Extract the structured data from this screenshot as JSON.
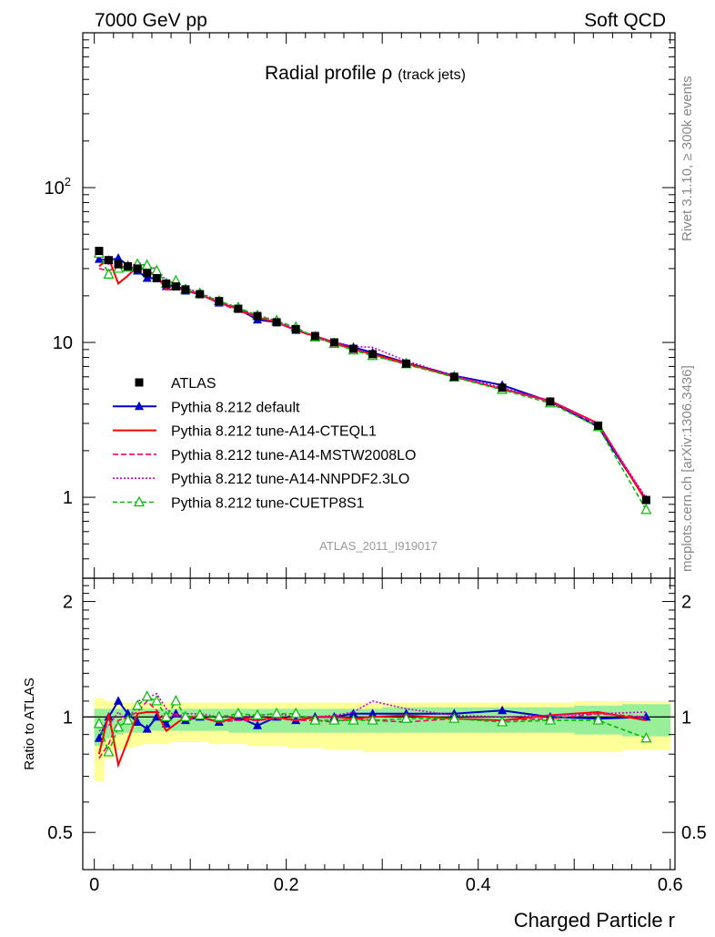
{
  "header": {
    "left": "7000 GeV pp",
    "right": "Soft QCD"
  },
  "side_text": {
    "rivet": "Rivet 3.1.10, ≥ 300k events",
    "mcplots": "mcplots.cern.ch [arXiv:1306.3436]"
  },
  "chart_data": {
    "type": "line",
    "title": "Radial profile",
    "title_symbol": "ρ",
    "title_suffix": "(track jets)",
    "watermark": "ATLAS_2011_I919017",
    "xlabel": "Charged Particle r",
    "ratio_ylabel": "Ratio to ATLAS",
    "xlim": [
      -0.012,
      0.605
    ],
    "ylim_main": [
      0.3,
      1000
    ],
    "yscale_main": "log",
    "ylim_ratio": [
      0.4,
      2.3
    ],
    "yscale_ratio": "log",
    "x_ticks": [
      {
        "v": 0,
        "label": "0"
      },
      {
        "v": 0.2,
        "label": "0.2"
      },
      {
        "v": 0.4,
        "label": "0.4"
      },
      {
        "v": 0.6,
        "label": "0.6"
      }
    ],
    "y_ticks_main": [
      {
        "v": 1,
        "label": "1"
      },
      {
        "v": 10,
        "label": "10"
      },
      {
        "v": 100,
        "label": "10²"
      }
    ],
    "y_ticks_ratio": [
      {
        "v": 0.5,
        "label": "0.5"
      },
      {
        "v": 1,
        "label": "1"
      },
      {
        "v": 2,
        "label": "2"
      }
    ],
    "legend_position": "lower-left",
    "x": [
      0.005,
      0.015,
      0.025,
      0.035,
      0.045,
      0.055,
      0.065,
      0.075,
      0.085,
      0.095,
      0.11,
      0.13,
      0.15,
      0.17,
      0.19,
      0.21,
      0.23,
      0.25,
      0.27,
      0.29,
      0.325,
      0.375,
      0.425,
      0.475,
      0.525,
      0.575
    ],
    "bins": [
      [
        0.0,
        0.01
      ],
      [
        0.01,
        0.02
      ],
      [
        0.02,
        0.03
      ],
      [
        0.03,
        0.04
      ],
      [
        0.04,
        0.05
      ],
      [
        0.05,
        0.06
      ],
      [
        0.06,
        0.07
      ],
      [
        0.07,
        0.08
      ],
      [
        0.08,
        0.09
      ],
      [
        0.09,
        0.1
      ],
      [
        0.1,
        0.12
      ],
      [
        0.12,
        0.14
      ],
      [
        0.14,
        0.16
      ],
      [
        0.16,
        0.18
      ],
      [
        0.18,
        0.2
      ],
      [
        0.2,
        0.22
      ],
      [
        0.22,
        0.24
      ],
      [
        0.24,
        0.26
      ],
      [
        0.26,
        0.28
      ],
      [
        0.28,
        0.3
      ],
      [
        0.3,
        0.35
      ],
      [
        0.35,
        0.4
      ],
      [
        0.4,
        0.45
      ],
      [
        0.45,
        0.5
      ],
      [
        0.5,
        0.55
      ],
      [
        0.55,
        0.6
      ]
    ],
    "ratio_bands": {
      "yellow": [
        [
          0.68,
          1.12
        ],
        [
          0.78,
          1.1
        ],
        [
          0.82,
          1.09
        ],
        [
          0.83,
          1.09
        ],
        [
          0.84,
          1.09
        ],
        [
          0.85,
          1.09
        ],
        [
          0.85,
          1.09
        ],
        [
          0.85,
          1.09
        ],
        [
          0.86,
          1.09
        ],
        [
          0.86,
          1.09
        ],
        [
          0.86,
          1.09
        ],
        [
          0.85,
          1.09
        ],
        [
          0.85,
          1.09
        ],
        [
          0.84,
          1.09
        ],
        [
          0.84,
          1.09
        ],
        [
          0.83,
          1.09
        ],
        [
          0.83,
          1.09
        ],
        [
          0.82,
          1.09
        ],
        [
          0.82,
          1.09
        ],
        [
          0.81,
          1.09
        ],
        [
          0.81,
          1.09
        ],
        [
          0.81,
          1.09
        ],
        [
          0.81,
          1.09
        ],
        [
          0.81,
          1.09
        ],
        [
          0.81,
          1.1
        ],
        [
          0.82,
          1.1
        ]
      ],
      "green": [
        [
          0.84,
          1.05
        ],
        [
          0.88,
          1.05
        ],
        [
          0.9,
          1.05
        ],
        [
          0.91,
          1.05
        ],
        [
          0.91,
          1.05
        ],
        [
          0.92,
          1.05
        ],
        [
          0.92,
          1.05
        ],
        [
          0.92,
          1.05
        ],
        [
          0.92,
          1.05
        ],
        [
          0.92,
          1.05
        ],
        [
          0.92,
          1.05
        ],
        [
          0.92,
          1.05
        ],
        [
          0.91,
          1.05
        ],
        [
          0.91,
          1.05
        ],
        [
          0.91,
          1.05
        ],
        [
          0.91,
          1.05
        ],
        [
          0.91,
          1.05
        ],
        [
          0.91,
          1.05
        ],
        [
          0.91,
          1.05
        ],
        [
          0.91,
          1.05
        ],
        [
          0.91,
          1.06
        ],
        [
          0.91,
          1.06
        ],
        [
          0.91,
          1.06
        ],
        [
          0.91,
          1.06
        ],
        [
          0.9,
          1.07
        ],
        [
          0.89,
          1.08
        ]
      ]
    },
    "series": [
      {
        "name": "ATLAS",
        "color": "#000000",
        "dash": "none",
        "marker": "square",
        "values": [
          39,
          34,
          32,
          31,
          30,
          28,
          26,
          24,
          23,
          22,
          20.5,
          18.5,
          16.5,
          14.8,
          13.5,
          12.2,
          11.0,
          10.0,
          9.1,
          8.4,
          7.3,
          6.0,
          5.1,
          4.15,
          2.9,
          0.96
        ],
        "ratio": [
          1,
          1,
          1,
          1,
          1,
          1,
          1,
          1,
          1,
          1,
          1,
          1,
          1,
          1,
          1,
          1,
          1,
          1,
          1,
          1,
          1,
          1,
          1,
          1,
          1,
          1
        ]
      },
      {
        "name": "Pythia 8.212 default",
        "color": "#0000cc",
        "dash": "none",
        "marker": "triangle",
        "values": [
          34.5,
          34.0,
          35.0,
          31.5,
          29.0,
          26.0,
          26.0,
          23.0,
          23.5,
          21.5,
          20.5,
          18.0,
          16.5,
          14.0,
          13.5,
          12.0,
          11.0,
          10.0,
          9.3,
          8.6,
          7.4,
          6.1,
          5.3,
          4.15,
          2.85,
          0.96
        ],
        "ratio": [
          0.88,
          1.0,
          1.1,
          1.02,
          0.97,
          0.93,
          1.0,
          0.96,
          1.02,
          0.98,
          1.0,
          0.97,
          1.0,
          0.95,
          1.0,
          0.98,
          1.0,
          1.0,
          1.02,
          1.02,
          1.02,
          1.02,
          1.04,
          1.0,
          0.99,
          1.0
        ]
      },
      {
        "name": "Pythia 8.212 tune-A14-CTEQL1",
        "color": "#ff0000",
        "dash": "none",
        "marker": "none",
        "values": [
          31.0,
          35.0,
          24.0,
          27.0,
          31.0,
          29.0,
          27.0,
          22.0,
          22.0,
          22.0,
          20.5,
          18.0,
          16.5,
          14.5,
          13.5,
          12.0,
          11.0,
          10.0,
          9.0,
          8.4,
          7.35,
          6.0,
          5.0,
          4.2,
          3.0,
          0.94
        ],
        "ratio": [
          0.8,
          1.02,
          0.75,
          0.87,
          1.02,
          1.03,
          1.03,
          0.92,
          0.96,
          1.0,
          1.0,
          0.97,
          1.0,
          0.98,
          1.0,
          0.98,
          1.0,
          1.0,
          0.99,
          1.0,
          1.01,
          0.99,
          0.98,
          1.01,
          1.03,
          0.98
        ]
      },
      {
        "name": "Pythia 8.212 tune-A14-MSTW2008LO",
        "color": "#ff0066",
        "dash": "6,3",
        "marker": "none",
        "values": [
          30.0,
          29.0,
          31.0,
          31.0,
          30.0,
          29.5,
          27.0,
          23.0,
          23.0,
          21.5,
          20.5,
          18.0,
          16.0,
          14.5,
          13.5,
          12.0,
          10.8,
          9.8,
          9.0,
          8.3,
          7.2,
          6.0,
          5.0,
          4.15,
          2.95,
          0.97
        ],
        "ratio": [
          0.78,
          0.85,
          0.98,
          1.0,
          1.03,
          1.1,
          1.04,
          0.98,
          1.02,
          0.98,
          1.0,
          0.97,
          0.98,
          0.98,
          0.99,
          0.98,
          0.98,
          0.97,
          0.99,
          0.98,
          0.97,
          0.99,
          0.98,
          0.99,
          1.02,
          1.0
        ]
      },
      {
        "name": "Pythia 8.212 tune-A14-NNPDF2.3LO",
        "color": "#cc00cc",
        "dash": "2,2",
        "marker": "none",
        "values": [
          36.0,
          32.0,
          33.0,
          30.0,
          33.0,
          31.0,
          30.0,
          25.0,
          23.0,
          22.5,
          21.0,
          18.5,
          16.5,
          15.0,
          13.8,
          12.2,
          11.0,
          10.1,
          9.4,
          9.3,
          7.6,
          6.1,
          5.1,
          4.2,
          2.95,
          0.99
        ],
        "ratio": [
          0.92,
          0.95,
          1.03,
          0.97,
          1.1,
          1.12,
          1.15,
          1.05,
          1.0,
          1.02,
          1.02,
          1.0,
          1.0,
          1.01,
          1.02,
          1.0,
          1.0,
          1.01,
          1.03,
          1.1,
          1.05,
          1.01,
          1.0,
          1.01,
          1.02,
          1.03
        ]
      },
      {
        "name": "Pythia 8.212 tune-CUETP8S1",
        "color": "#00bb00",
        "dash": "5,3",
        "marker": "triangle-open",
        "values": [
          37.5,
          27.5,
          30.0,
          30.5,
          32.0,
          31.5,
          29.0,
          24.0,
          25.0,
          22.0,
          20.7,
          18.5,
          16.8,
          14.9,
          13.8,
          12.5,
          10.8,
          9.8,
          8.9,
          8.2,
          7.25,
          5.95,
          4.95,
          4.05,
          2.85,
          0.83
        ],
        "ratio": [
          0.96,
          0.81,
          0.94,
          0.98,
          1.07,
          1.13,
          1.1,
          1.0,
          1.1,
          1.0,
          1.01,
          1.0,
          1.02,
          1.01,
          1.02,
          1.02,
          0.98,
          0.98,
          0.98,
          0.98,
          0.99,
          0.99,
          0.97,
          0.98,
          0.98,
          0.88
        ]
      }
    ]
  }
}
